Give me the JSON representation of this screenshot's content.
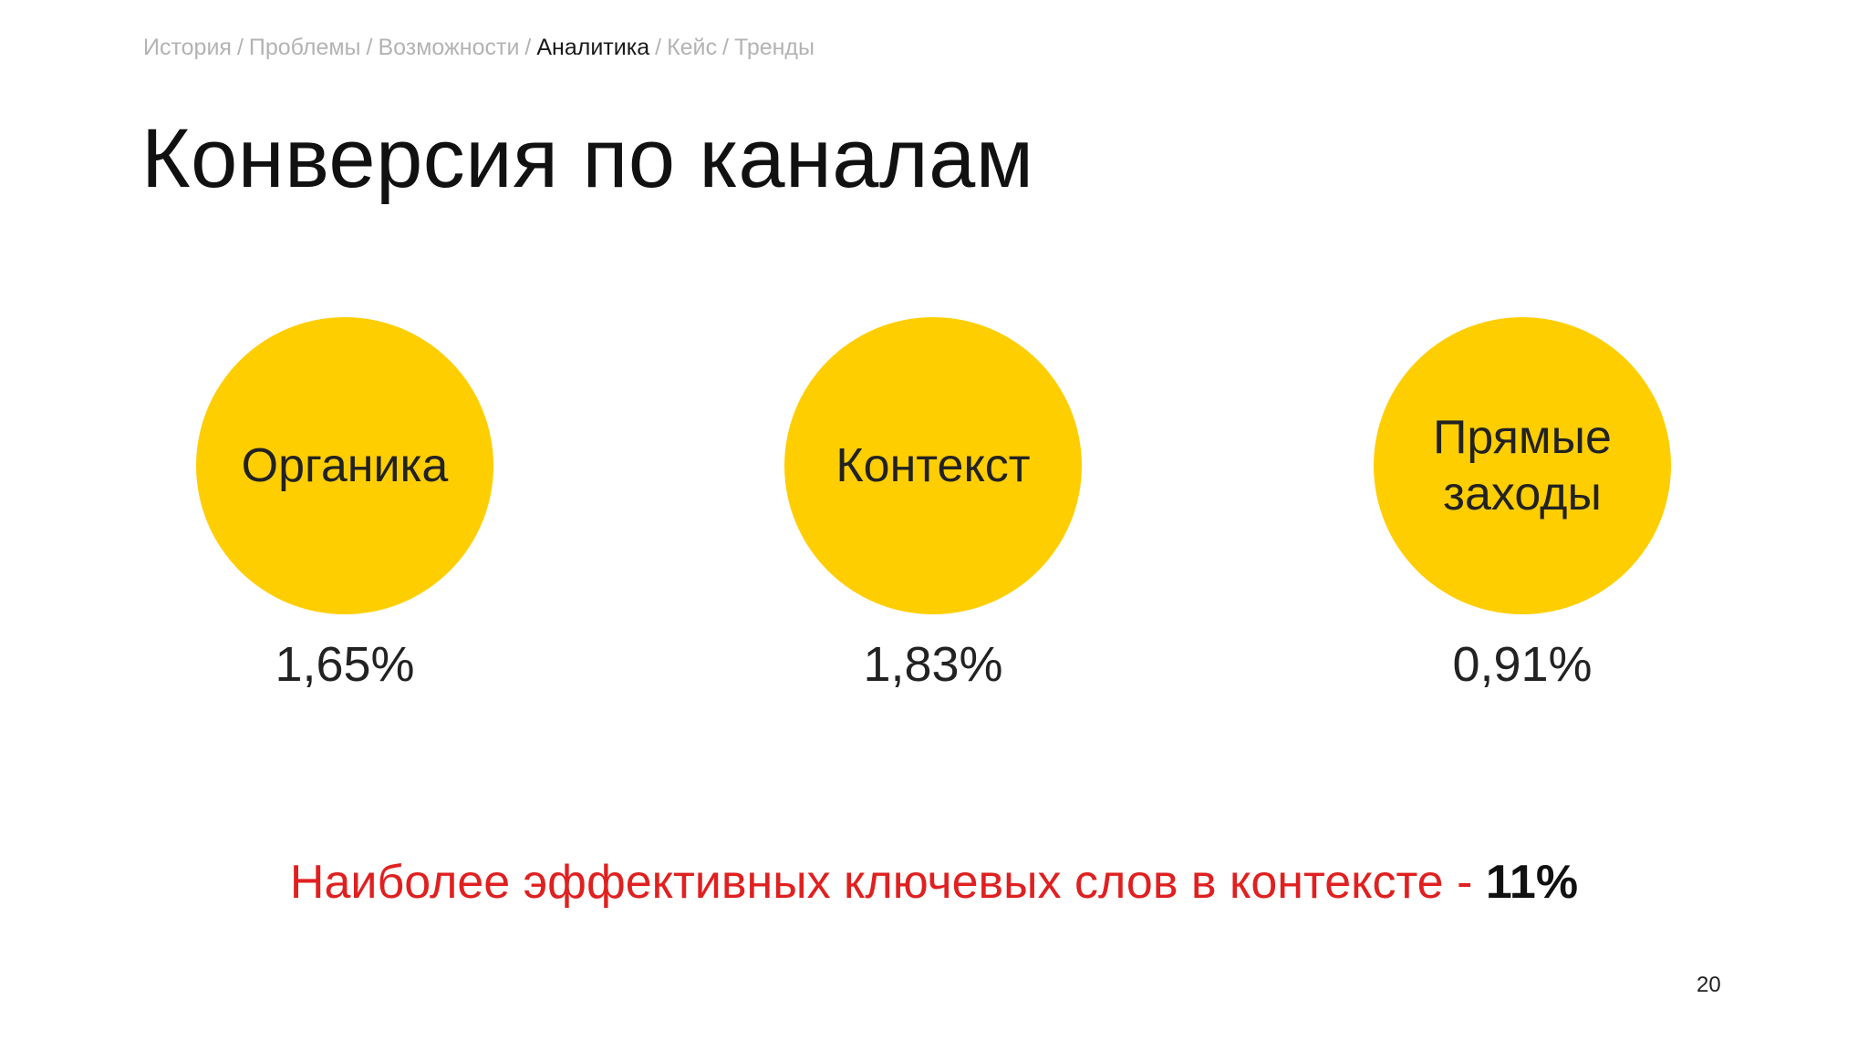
{
  "breadcrumb": {
    "items": [
      "История",
      "Проблемы",
      "Возможности",
      "Аналитика",
      "Кейс",
      "Тренды"
    ],
    "separator": "/",
    "active_index": 3
  },
  "title": "Конверсия по каналам",
  "channels": [
    {
      "label": "Органика",
      "value": "1,65%"
    },
    {
      "label": "Контекст",
      "value": "1,83%"
    },
    {
      "label": "Прямые заходы",
      "value": "0,91%"
    }
  ],
  "note": {
    "text": "Наиболее эффективных ключевых слов в контексте",
    "dash": "-",
    "highlight": "11%"
  },
  "page_number": "20",
  "colors": {
    "circle": "#ffce00",
    "note": "#e02020",
    "breadcrumb_inactive": "#b3b3b3",
    "breadcrumb_active": "#1a1a1a"
  }
}
